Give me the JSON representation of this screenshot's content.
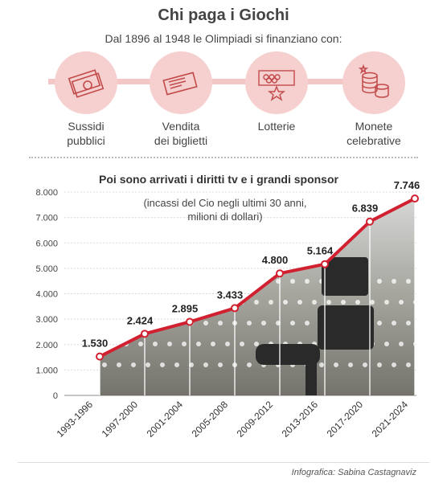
{
  "title": "Chi paga i Giochi",
  "subtitle": "Dal 1896 al 1948 le Olimpiadi si finanziano con:",
  "sources": [
    {
      "label": "Sussidi\npubblici",
      "icon": "banknotes-icon"
    },
    {
      "label": "Vendita\ndei biglietti",
      "icon": "tickets-icon"
    },
    {
      "label": "Lotterie",
      "icon": "lottery-ticket-icon"
    },
    {
      "label": "Monete\ncelebrative",
      "icon": "coins-icon"
    }
  ],
  "credit": "Infografica: Sabina Castagnaviz",
  "colors": {
    "accent": "#d1202f",
    "accent_light": "#f6cfcf"
  },
  "chart_data": {
    "type": "line",
    "title": "Poi sono arrivati i diritti tv e i grandi sponsor",
    "subtitle": "(incassi del Cio negli ultimi 30 anni,\nmilioni di dollari)",
    "categories": [
      "1993-1996",
      "1997-2000",
      "2001-2004",
      "2005-2008",
      "2009-2012",
      "2013-2016",
      "2017-2020",
      "2021-2024"
    ],
    "values": [
      1530,
      2424,
      2895,
      3433,
      4800,
      5164,
      6839,
      7746
    ],
    "value_labels": [
      "1.530",
      "2.424",
      "2.895",
      "3.433",
      "4.800",
      "5.164",
      "6.839",
      "7.746"
    ],
    "yticks": [
      "0",
      "1.000",
      "2.000",
      "3.000",
      "4.000",
      "5.000",
      "6.000",
      "7.000",
      "8.000"
    ],
    "ylim": [
      0,
      8000
    ],
    "grid": true,
    "area_fill": true
  }
}
